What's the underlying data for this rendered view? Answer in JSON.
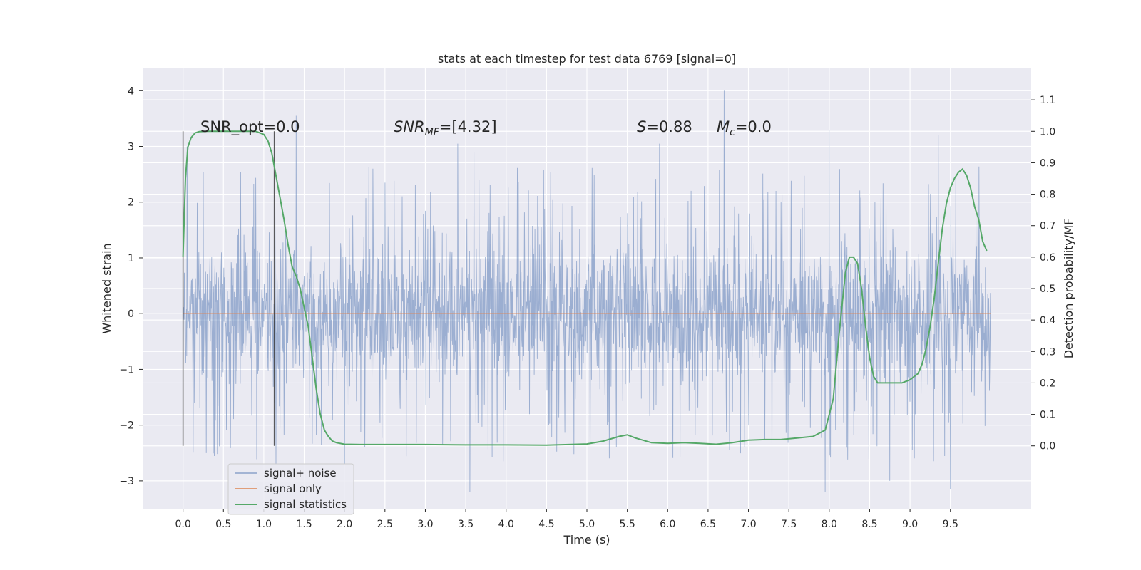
{
  "chart_data": {
    "type": "line",
    "title": "stats at each timestep for test data 6769 [signal=0]",
    "xlabel": "Time (s)",
    "ylabel_left": "Whitened strain",
    "ylabel_right": "Detection probability/MF",
    "xlim": [
      -0.5,
      10.5
    ],
    "ylim_left": [
      -3.5,
      4.4
    ],
    "ylim_right": [
      -0.2,
      1.2
    ],
    "grid": true,
    "x_ticks": [
      "0.0",
      "0.5",
      "1.0",
      "1.5",
      "2.0",
      "2.5",
      "3.0",
      "3.5",
      "4.0",
      "4.5",
      "5.0",
      "5.5",
      "6.0",
      "6.5",
      "7.0",
      "7.5",
      "8.0",
      "8.5",
      "9.0",
      "9.5"
    ],
    "y_left_ticks": [
      "−3",
      "−2",
      "−1",
      "0",
      "1",
      "2",
      "3",
      "4"
    ],
    "y_right_ticks": [
      "0.0",
      "0.1",
      "0.2",
      "0.3",
      "0.4",
      "0.5",
      "0.6",
      "0.7",
      "0.8",
      "0.9",
      "1.0",
      "1.1"
    ],
    "legend": {
      "position": "lower-left",
      "entries": [
        {
          "label": "signal+ noise",
          "color": "#4c72b0"
        },
        {
          "label": "signal only",
          "color": "#dd8452"
        },
        {
          "label": "signal statistics",
          "color": "#55a868"
        }
      ]
    },
    "annotations": {
      "snr_opt": "SNR_opt=0.0",
      "snr_mf_sym": "SNR",
      "snr_mf_sub": "MF",
      "snr_mf_val": "=[4.32]",
      "s_sym": "S",
      "s_val": "=0.88",
      "mc_sym": "M",
      "mc_sub": "c",
      "mc_val": "=0.0"
    },
    "vertical_markers": [
      0.0,
      1.13
    ],
    "series": [
      {
        "name": "signal+ noise",
        "color": "#4c72b0",
        "axis": "left",
        "x_range": [
          0.0,
          10.0
        ],
        "envelope_typical": [
          -1.7,
          1.6
        ],
        "peaks": [
          {
            "x": 0.05,
            "y": 3.0
          },
          {
            "x": 1.4,
            "y": 3.55
          },
          {
            "x": 2.35,
            "y": 2.6
          },
          {
            "x": 3.4,
            "y": 3.05
          },
          {
            "x": 3.6,
            "y": 2.9
          },
          {
            "x": 5.9,
            "y": 3.05
          },
          {
            "x": 6.7,
            "y": 4.0
          },
          {
            "x": 8.0,
            "y": 3.3
          },
          {
            "x": 9.35,
            "y": 3.2
          },
          {
            "x": 3.55,
            "y": -3.2
          },
          {
            "x": 7.95,
            "y": -3.2
          },
          {
            "x": 9.5,
            "y": -3.15
          },
          {
            "x": 2.0,
            "y": -2.7
          },
          {
            "x": 8.75,
            "y": -3.0
          },
          {
            "x": 1.15,
            "y": -2.7
          }
        ]
      },
      {
        "name": "signal only",
        "color": "#dd8452",
        "axis": "left",
        "x": [
          0.0,
          10.0
        ],
        "y": [
          0.0,
          0.0
        ]
      },
      {
        "name": "signal statistics",
        "color": "#55a868",
        "axis": "right",
        "x": [
          0.0,
          0.03,
          0.06,
          0.1,
          0.15,
          0.2,
          0.3,
          0.5,
          0.7,
          0.9,
          1.0,
          1.05,
          1.1,
          1.15,
          1.2,
          1.25,
          1.3,
          1.35,
          1.4,
          1.45,
          1.5,
          1.55,
          1.6,
          1.65,
          1.7,
          1.75,
          1.8,
          1.85,
          1.9,
          2.0,
          2.2,
          2.5,
          3.0,
          3.5,
          4.0,
          4.5,
          5.0,
          5.2,
          5.4,
          5.5,
          5.6,
          5.8,
          6.0,
          6.2,
          6.4,
          6.6,
          6.8,
          7.0,
          7.2,
          7.4,
          7.6,
          7.8,
          7.95,
          8.05,
          8.12,
          8.2,
          8.25,
          8.3,
          8.35,
          8.4,
          8.45,
          8.5,
          8.55,
          8.6,
          8.65,
          8.7,
          8.8,
          8.9,
          9.0,
          9.1,
          9.15,
          9.2,
          9.25,
          9.3,
          9.35,
          9.4,
          9.45,
          9.5,
          9.55,
          9.6,
          9.65,
          9.7,
          9.75,
          9.8,
          9.85,
          9.9,
          9.95
        ],
        "y": [
          0.6,
          0.85,
          0.95,
          0.98,
          0.995,
          0.999,
          1.0,
          1.0,
          1.0,
          1.0,
          0.99,
          0.97,
          0.93,
          0.86,
          0.79,
          0.72,
          0.64,
          0.57,
          0.54,
          0.5,
          0.44,
          0.38,
          0.28,
          0.18,
          0.1,
          0.05,
          0.03,
          0.015,
          0.01,
          0.005,
          0.004,
          0.004,
          0.004,
          0.003,
          0.003,
          0.002,
          0.006,
          0.015,
          0.03,
          0.035,
          0.025,
          0.01,
          0.008,
          0.01,
          0.008,
          0.005,
          0.01,
          0.018,
          0.02,
          0.02,
          0.025,
          0.03,
          0.05,
          0.15,
          0.35,
          0.55,
          0.6,
          0.6,
          0.58,
          0.5,
          0.38,
          0.28,
          0.22,
          0.2,
          0.2,
          0.2,
          0.2,
          0.2,
          0.21,
          0.23,
          0.26,
          0.31,
          0.38,
          0.47,
          0.58,
          0.69,
          0.77,
          0.82,
          0.85,
          0.87,
          0.88,
          0.86,
          0.82,
          0.76,
          0.72,
          0.65,
          0.62
        ]
      }
    ]
  }
}
